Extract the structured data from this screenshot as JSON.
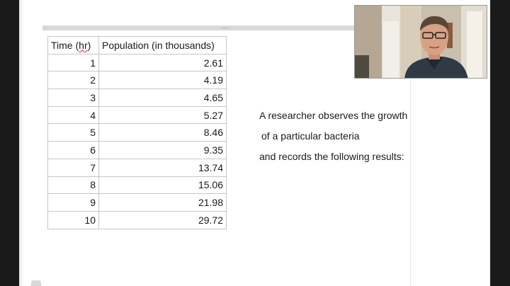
{
  "table": {
    "headers": {
      "time_prefix": "Time (",
      "time_unit": "hr",
      "time_suffix": ")",
      "population": "Population (in thousands)"
    },
    "rows": [
      {
        "time": "1",
        "population": "2.61"
      },
      {
        "time": "2",
        "population": "4.19"
      },
      {
        "time": "3",
        "population": "4.65"
      },
      {
        "time": "4",
        "population": "5.27"
      },
      {
        "time": "5",
        "population": "8.46"
      },
      {
        "time": "6",
        "population": "9.35"
      },
      {
        "time": "7",
        "population": "13.74"
      },
      {
        "time": "8",
        "population": "15.06"
      },
      {
        "time": "9",
        "population": "21.98"
      },
      {
        "time": "10",
        "population": "29.72"
      }
    ]
  },
  "description": {
    "line1": "A researcher observes the growth",
    "line2": "of a particular bacteria",
    "line3": "and records the following results:"
  },
  "ruler": {
    "grip_glyph": "····"
  },
  "colors": {
    "spellcheck_underline": "#dd2222",
    "table_border": "#c6c6c6",
    "frame": "#1a1a1a"
  }
}
